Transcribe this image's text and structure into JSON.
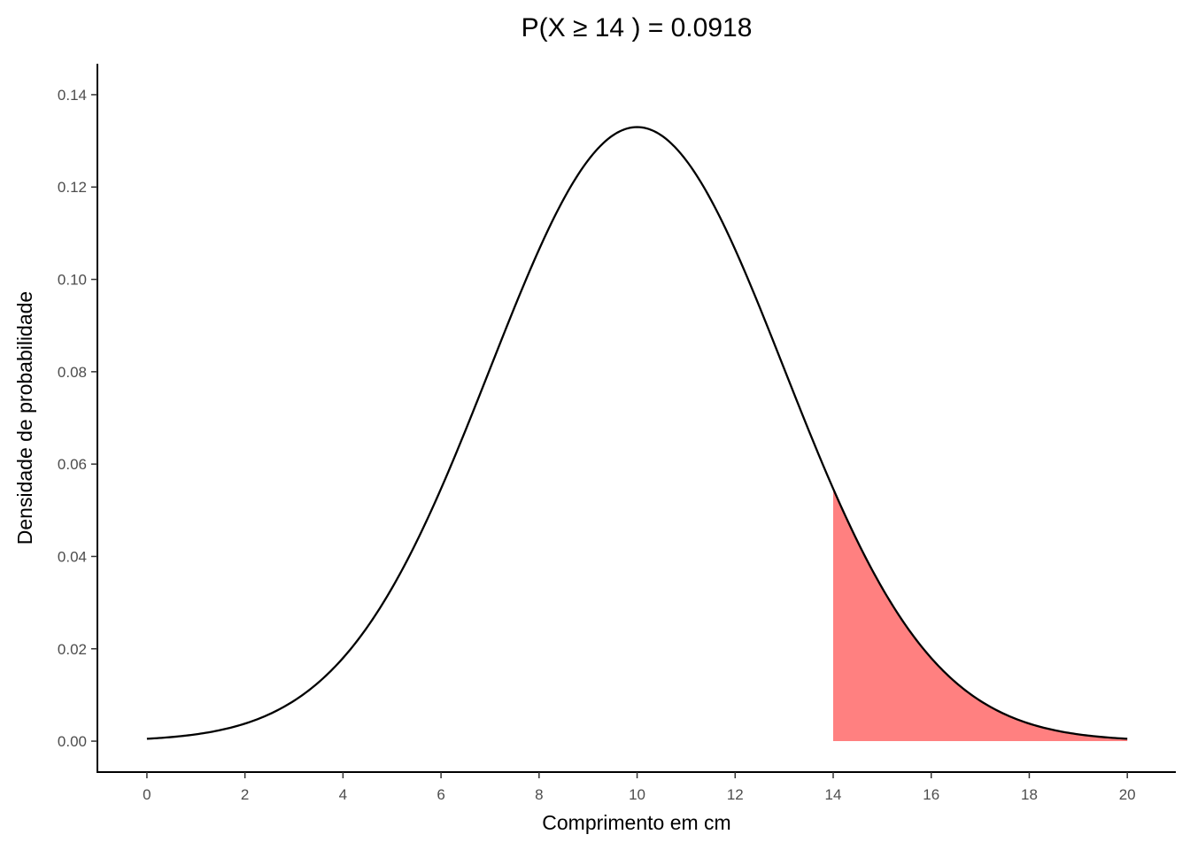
{
  "chart_data": {
    "type": "area",
    "title": "P(X  ≥  14 ) = 0.0918",
    "xlabel": "Comprimento em cm",
    "ylabel": "Densidade de probabilidade",
    "distribution": "normal",
    "mean": 10,
    "sd": 3,
    "curve_x_range": [
      0,
      20
    ],
    "shaded_region": {
      "from": 14,
      "to": 20,
      "color": "#FF8080",
      "probability": 0.0918
    },
    "xlim": [
      -1.01,
      20.99
    ],
    "ylim": [
      -0.0067,
      0.1467
    ],
    "x_ticks": [
      0,
      2,
      4,
      6,
      8,
      10,
      12,
      14,
      16,
      18,
      20
    ],
    "x_tick_labels": [
      "0",
      "2",
      "4",
      "6",
      "8",
      "10",
      "12",
      "14",
      "16",
      "18",
      "20"
    ],
    "y_ticks": [
      0,
      0.02,
      0.04,
      0.06,
      0.08,
      0.1,
      0.12,
      0.14
    ],
    "y_tick_labels": [
      "0.00",
      "0.02",
      "0.04",
      "0.06",
      "0.08",
      "0.10",
      "0.12",
      "0.14"
    ],
    "grid": false,
    "line_color": "#000000"
  }
}
